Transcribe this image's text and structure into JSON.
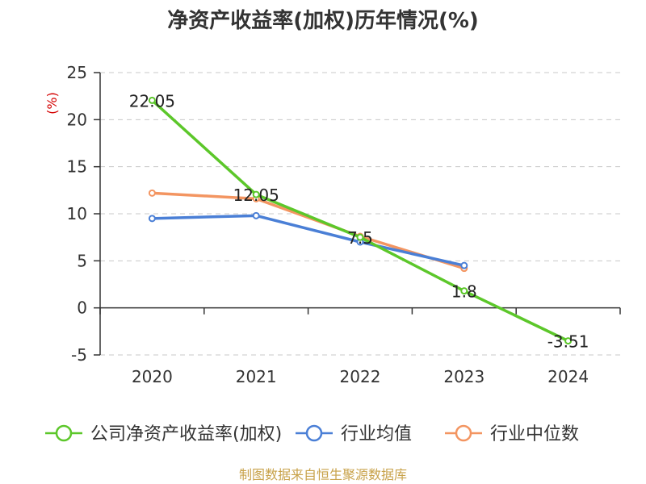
{
  "chart_data": {
    "type": "line",
    "title": "净资产收益率(加权)历年情况(%)",
    "ylabel": "(%)",
    "categories": [
      "2020",
      "2021",
      "2022",
      "2023",
      "2024"
    ],
    "ylim": [
      -5,
      25
    ],
    "yticks": [
      -5,
      0,
      5,
      10,
      15,
      20,
      25
    ],
    "grid": true,
    "legend_position": "bottom",
    "series": [
      {
        "name": "公司净资产收益率(加权)",
        "color": "#5cc72a",
        "values": [
          22.05,
          12.05,
          7.5,
          1.8,
          -3.51
        ],
        "labels": [
          "22.05",
          "12.05",
          "7.5",
          "1.8",
          "-3.51"
        ]
      },
      {
        "name": "行业均值",
        "color": "#4a7fd6",
        "values": [
          9.5,
          9.8,
          7.0,
          4.5,
          null
        ]
      },
      {
        "name": "行业中位数",
        "color": "#f39561",
        "values": [
          12.2,
          11.6,
          7.6,
          4.2,
          null
        ]
      }
    ]
  },
  "footer": {
    "source": "制图数据来自恒生聚源数据库"
  }
}
